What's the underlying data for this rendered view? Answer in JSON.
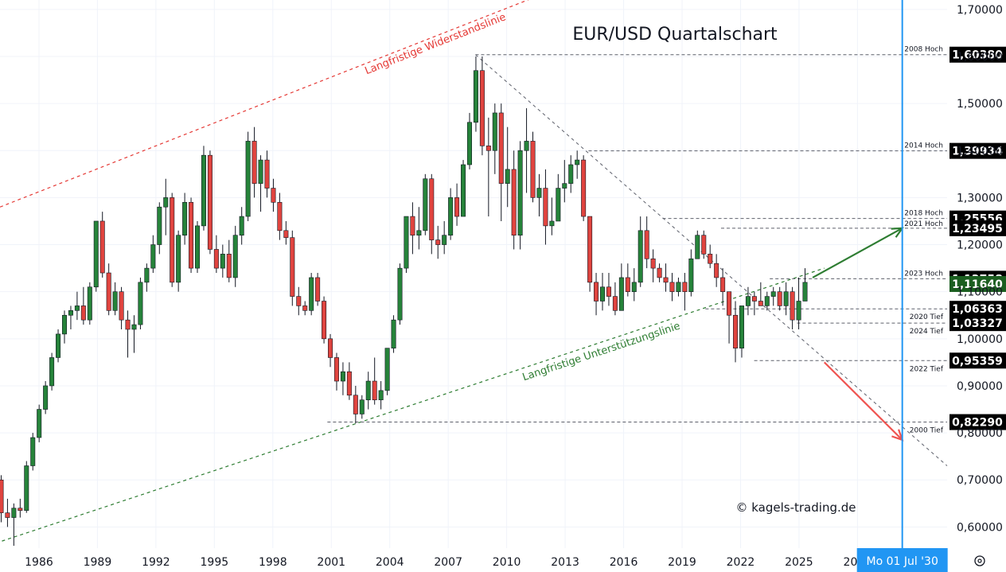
{
  "chart_data": {
    "type": "candlestick",
    "title": "EUR/USD Quartalschart",
    "xlabel": "",
    "ylabel": "",
    "y_axis": {
      "min": 0.555,
      "max": 1.72,
      "ticks": [
        "0,60000",
        "0,70000",
        "0,80000",
        "0,90000",
        "1,00000",
        "1,10000",
        "1,20000",
        "1,30000",
        "1,40000",
        "1,50000",
        "1,60000",
        "1,70000"
      ],
      "tick_values": [
        0.6,
        0.7,
        0.8,
        0.9,
        1.0,
        1.1,
        1.2,
        1.3,
        1.4,
        1.5,
        1.6,
        1.7
      ],
      "position": "right"
    },
    "x_axis": {
      "start_year": 1984.0,
      "end_year": 2032.6,
      "tick_labels": [
        "1986",
        "1989",
        "1992",
        "1995",
        "1998",
        "2001",
        "2004",
        "2007",
        "2010",
        "2013",
        "2016",
        "2019",
        "2022",
        "2025",
        "2028"
      ],
      "tick_years": [
        1986,
        1989,
        1992,
        1995,
        1998,
        2001,
        2004,
        2007,
        2010,
        2013,
        2016,
        2019,
        2022,
        2025,
        2028
      ]
    },
    "grid": true,
    "candles_ohlc": [
      [
        0.7,
        0.71,
        0.61,
        0.63
      ],
      [
        0.63,
        0.66,
        0.6,
        0.62
      ],
      [
        0.62,
        0.65,
        0.56,
        0.64
      ],
      [
        0.64,
        0.66,
        0.62,
        0.635
      ],
      [
        0.635,
        0.74,
        0.63,
        0.73
      ],
      [
        0.73,
        0.8,
        0.72,
        0.79
      ],
      [
        0.79,
        0.86,
        0.78,
        0.85
      ],
      [
        0.85,
        0.91,
        0.84,
        0.9
      ],
      [
        0.9,
        0.97,
        0.89,
        0.96
      ],
      [
        0.96,
        1.02,
        0.95,
        1.01
      ],
      [
        1.01,
        1.06,
        0.99,
        1.05
      ],
      [
        1.05,
        1.07,
        1.02,
        1.06
      ],
      [
        1.06,
        1.1,
        1.04,
        1.07
      ],
      [
        1.07,
        1.11,
        1.03,
        1.04
      ],
      [
        1.04,
        1.12,
        1.03,
        1.11
      ],
      [
        1.11,
        1.25,
        1.1,
        1.25
      ],
      [
        1.25,
        1.27,
        1.13,
        1.14
      ],
      [
        1.14,
        1.16,
        1.05,
        1.06
      ],
      [
        1.06,
        1.12,
        1.05,
        1.1
      ],
      [
        1.1,
        1.11,
        1.02,
        1.04
      ],
      [
        1.04,
        1.06,
        0.96,
        1.02
      ],
      [
        1.02,
        1.05,
        0.97,
        1.03
      ],
      [
        1.03,
        1.13,
        1.02,
        1.12
      ],
      [
        1.12,
        1.16,
        1.1,
        1.15
      ],
      [
        1.15,
        1.22,
        1.14,
        1.2
      ],
      [
        1.2,
        1.29,
        1.18,
        1.28
      ],
      [
        1.28,
        1.34,
        1.22,
        1.3
      ],
      [
        1.3,
        1.31,
        1.11,
        1.12
      ],
      [
        1.12,
        1.23,
        1.1,
        1.22
      ],
      [
        1.22,
        1.31,
        1.2,
        1.29
      ],
      [
        1.29,
        1.3,
        1.14,
        1.15
      ],
      [
        1.15,
        1.25,
        1.14,
        1.24
      ],
      [
        1.24,
        1.41,
        1.23,
        1.39
      ],
      [
        1.39,
        1.4,
        1.18,
        1.19
      ],
      [
        1.19,
        1.22,
        1.14,
        1.15
      ],
      [
        1.15,
        1.2,
        1.13,
        1.18
      ],
      [
        1.18,
        1.21,
        1.12,
        1.13
      ],
      [
        1.13,
        1.24,
        1.11,
        1.22
      ],
      [
        1.22,
        1.28,
        1.2,
        1.26
      ],
      [
        1.26,
        1.44,
        1.25,
        1.42
      ],
      [
        1.42,
        1.45,
        1.3,
        1.33
      ],
      [
        1.33,
        1.39,
        1.27,
        1.38
      ],
      [
        1.38,
        1.4,
        1.3,
        1.32
      ],
      [
        1.32,
        1.34,
        1.27,
        1.29
      ],
      [
        1.29,
        1.31,
        1.21,
        1.23
      ],
      [
        1.23,
        1.25,
        1.2,
        1.215
      ],
      [
        1.215,
        1.23,
        1.07,
        1.09
      ],
      [
        1.09,
        1.11,
        1.05,
        1.07
      ],
      [
        1.07,
        1.08,
        1.05,
        1.06
      ],
      [
        1.06,
        1.14,
        1.05,
        1.13
      ],
      [
        1.13,
        1.14,
        1.07,
        1.08
      ],
      [
        1.08,
        1.09,
        0.99,
        1.0
      ],
      [
        1.0,
        1.01,
        0.94,
        0.96
      ],
      [
        0.96,
        0.97,
        0.89,
        0.91
      ],
      [
        0.91,
        0.95,
        0.88,
        0.93
      ],
      [
        0.93,
        0.95,
        0.87,
        0.88
      ],
      [
        0.88,
        0.9,
        0.82,
        0.84
      ],
      [
        0.84,
        0.88,
        0.83,
        0.87
      ],
      [
        0.87,
        0.93,
        0.85,
        0.91
      ],
      [
        0.91,
        0.96,
        0.86,
        0.87
      ],
      [
        0.87,
        0.91,
        0.85,
        0.89
      ],
      [
        0.89,
        0.97,
        0.88,
        0.98
      ],
      [
        0.98,
        1.05,
        0.97,
        1.04
      ],
      [
        1.04,
        1.16,
        1.03,
        1.15
      ],
      [
        1.15,
        1.26,
        1.14,
        1.26
      ],
      [
        1.26,
        1.29,
        1.18,
        1.22
      ],
      [
        1.22,
        1.28,
        1.19,
        1.23
      ],
      [
        1.23,
        1.35,
        1.22,
        1.34
      ],
      [
        1.34,
        1.35,
        1.18,
        1.21
      ],
      [
        1.21,
        1.24,
        1.17,
        1.2
      ],
      [
        1.2,
        1.25,
        1.18,
        1.22
      ],
      [
        1.22,
        1.32,
        1.21,
        1.3
      ],
      [
        1.3,
        1.33,
        1.24,
        1.26
      ],
      [
        1.26,
        1.38,
        1.26,
        1.37
      ],
      [
        1.37,
        1.48,
        1.36,
        1.46
      ],
      [
        1.46,
        1.6,
        1.44,
        1.57
      ],
      [
        1.57,
        1.6,
        1.39,
        1.41
      ],
      [
        1.41,
        1.47,
        1.26,
        1.4
      ],
      [
        1.4,
        1.5,
        1.35,
        1.48
      ],
      [
        1.48,
        1.5,
        1.25,
        1.33
      ],
      [
        1.33,
        1.45,
        1.28,
        1.36
      ],
      [
        1.36,
        1.4,
        1.19,
        1.22
      ],
      [
        1.22,
        1.42,
        1.19,
        1.4
      ],
      [
        1.4,
        1.49,
        1.31,
        1.42
      ],
      [
        1.42,
        1.44,
        1.29,
        1.3
      ],
      [
        1.3,
        1.35,
        1.26,
        1.32
      ],
      [
        1.32,
        1.36,
        1.2,
        1.24
      ],
      [
        1.24,
        1.3,
        1.22,
        1.25
      ],
      [
        1.25,
        1.35,
        1.27,
        1.32
      ],
      [
        1.32,
        1.38,
        1.29,
        1.33
      ],
      [
        1.33,
        1.39,
        1.31,
        1.37
      ],
      [
        1.37,
        1.4,
        1.34,
        1.38
      ],
      [
        1.38,
        1.39,
        1.25,
        1.26
      ],
      [
        1.26,
        1.26,
        1.1,
        1.12
      ],
      [
        1.12,
        1.14,
        1.05,
        1.08
      ],
      [
        1.08,
        1.14,
        1.06,
        1.11
      ],
      [
        1.11,
        1.14,
        1.07,
        1.09
      ],
      [
        1.09,
        1.12,
        1.05,
        1.06
      ],
      [
        1.06,
        1.16,
        1.06,
        1.13
      ],
      [
        1.13,
        1.16,
        1.09,
        1.1
      ],
      [
        1.1,
        1.15,
        1.08,
        1.12
      ],
      [
        1.12,
        1.26,
        1.11,
        1.23
      ],
      [
        1.23,
        1.26,
        1.15,
        1.17
      ],
      [
        1.17,
        1.19,
        1.12,
        1.15
      ],
      [
        1.15,
        1.16,
        1.12,
        1.13
      ],
      [
        1.13,
        1.16,
        1.1,
        1.12
      ],
      [
        1.12,
        1.14,
        1.08,
        1.1
      ],
      [
        1.1,
        1.13,
        1.09,
        1.12
      ],
      [
        1.12,
        1.14,
        1.06,
        1.1
      ],
      [
        1.1,
        1.19,
        1.09,
        1.17
      ],
      [
        1.17,
        1.23,
        1.17,
        1.22
      ],
      [
        1.22,
        1.23,
        1.17,
        1.18
      ],
      [
        1.18,
        1.2,
        1.15,
        1.16
      ],
      [
        1.16,
        1.18,
        1.11,
        1.13
      ],
      [
        1.13,
        1.15,
        1.07,
        1.1
      ],
      [
        1.1,
        1.1,
        0.99,
        1.05
      ],
      [
        1.05,
        1.08,
        0.95,
        0.98
      ],
      [
        0.98,
        1.07,
        0.96,
        1.07
      ],
      [
        1.07,
        1.11,
        1.05,
        1.09
      ],
      [
        1.09,
        1.1,
        1.05,
        1.08
      ],
      [
        1.08,
        1.12,
        1.07,
        1.07
      ],
      [
        1.07,
        1.1,
        1.06,
        1.09
      ],
      [
        1.09,
        1.11,
        1.07,
        1.1
      ],
      [
        1.1,
        1.11,
        1.06,
        1.07
      ],
      [
        1.07,
        1.12,
        1.05,
        1.1
      ],
      [
        1.1,
        1.11,
        1.02,
        1.04
      ],
      [
        1.04,
        1.13,
        1.02,
        1.08
      ],
      [
        1.08,
        1.15,
        1.08,
        1.12
      ]
    ],
    "series": [
      {
        "name": "Langfristige Widerstandslinie",
        "type": "trend-line",
        "color": "#e53935",
        "points": [
          [
            1984.0,
            1.28
          ],
          [
            2016.0,
            1.8
          ]
        ]
      },
      {
        "name": "Langfristige Unterstützungslinie",
        "type": "trend-line",
        "color": "#2e7d32",
        "points": [
          [
            1984.1,
            0.57
          ],
          [
            2026.3,
            1.15
          ]
        ]
      }
    ],
    "annotations": {
      "levels": [
        {
          "label": "2008 Hoch",
          "value_text": "1,60380",
          "value": 1.6038,
          "from_year": 2008.4,
          "style": "dark"
        },
        {
          "label": "2014 Hoch",
          "value_text": "1,39934",
          "value": 1.39934,
          "from_year": 2014.2,
          "style": "dark"
        },
        {
          "label": "2018 Hoch",
          "value_text": "1,25556",
          "value": 1.25556,
          "from_year": 2018.0,
          "style": "dark"
        },
        {
          "label": "2021 Hoch",
          "value_text": "1,23495",
          "value": 1.23495,
          "from_year": 2021.0,
          "style": "dark"
        },
        {
          "label": "2023 Hoch",
          "value_text": "1,12758",
          "value": 1.12758,
          "from_year": 2023.5,
          "style": "dark"
        },
        {
          "label": "",
          "value_text": "1,11640",
          "value": 1.1164,
          "from_year": 0,
          "style": "green"
        },
        {
          "label": "2020 Tief",
          "value_text": "1,06363",
          "value": 1.06363,
          "from_year": 2020.2,
          "style": "dark"
        },
        {
          "label": "2024 Tief",
          "value_text": "1,03327",
          "value": 1.03327,
          "from_year": 2024.9,
          "style": "dark"
        },
        {
          "label": "2022 Tief",
          "value_text": "0,95359",
          "value": 0.95359,
          "from_year": 2022.7,
          "style": "dark"
        },
        {
          "label": "2000 Tief",
          "value_text": "0,82290",
          "value": 0.8229,
          "from_year": 2000.8,
          "style": "dark"
        }
      ],
      "down_trend": {
        "from": [
          2008.4,
          1.6038
        ],
        "to": [
          2032.6,
          0.73
        ]
      },
      "arrows": [
        {
          "color": "#2e7d32",
          "from": [
            2025.7,
            1.13
          ],
          "to": [
            2030.3,
            1.235
          ]
        },
        {
          "color": "#ef5350",
          "from": [
            2026.3,
            0.95
          ],
          "to": [
            2030.3,
            0.785
          ]
        }
      ],
      "cursor_year": 2030.3,
      "cursor_label": "Mo 01 Jul '30",
      "watermark": "© kagels-trading.de",
      "resistance_label": "Langfristige Widerstandslinie",
      "support_label": "Langfristige Unterstützungslinie"
    },
    "colors": {
      "up": "#26833a",
      "down": "#e0443f",
      "wick": "#131722",
      "grid": "#f0f3fa",
      "cursor": "#2196f3",
      "label_bg_dark": "#000000",
      "label_bg_green": "#1b5e20",
      "ref_line": "#5d606b"
    },
    "icons": {
      "settings": "gear-icon"
    }
  }
}
